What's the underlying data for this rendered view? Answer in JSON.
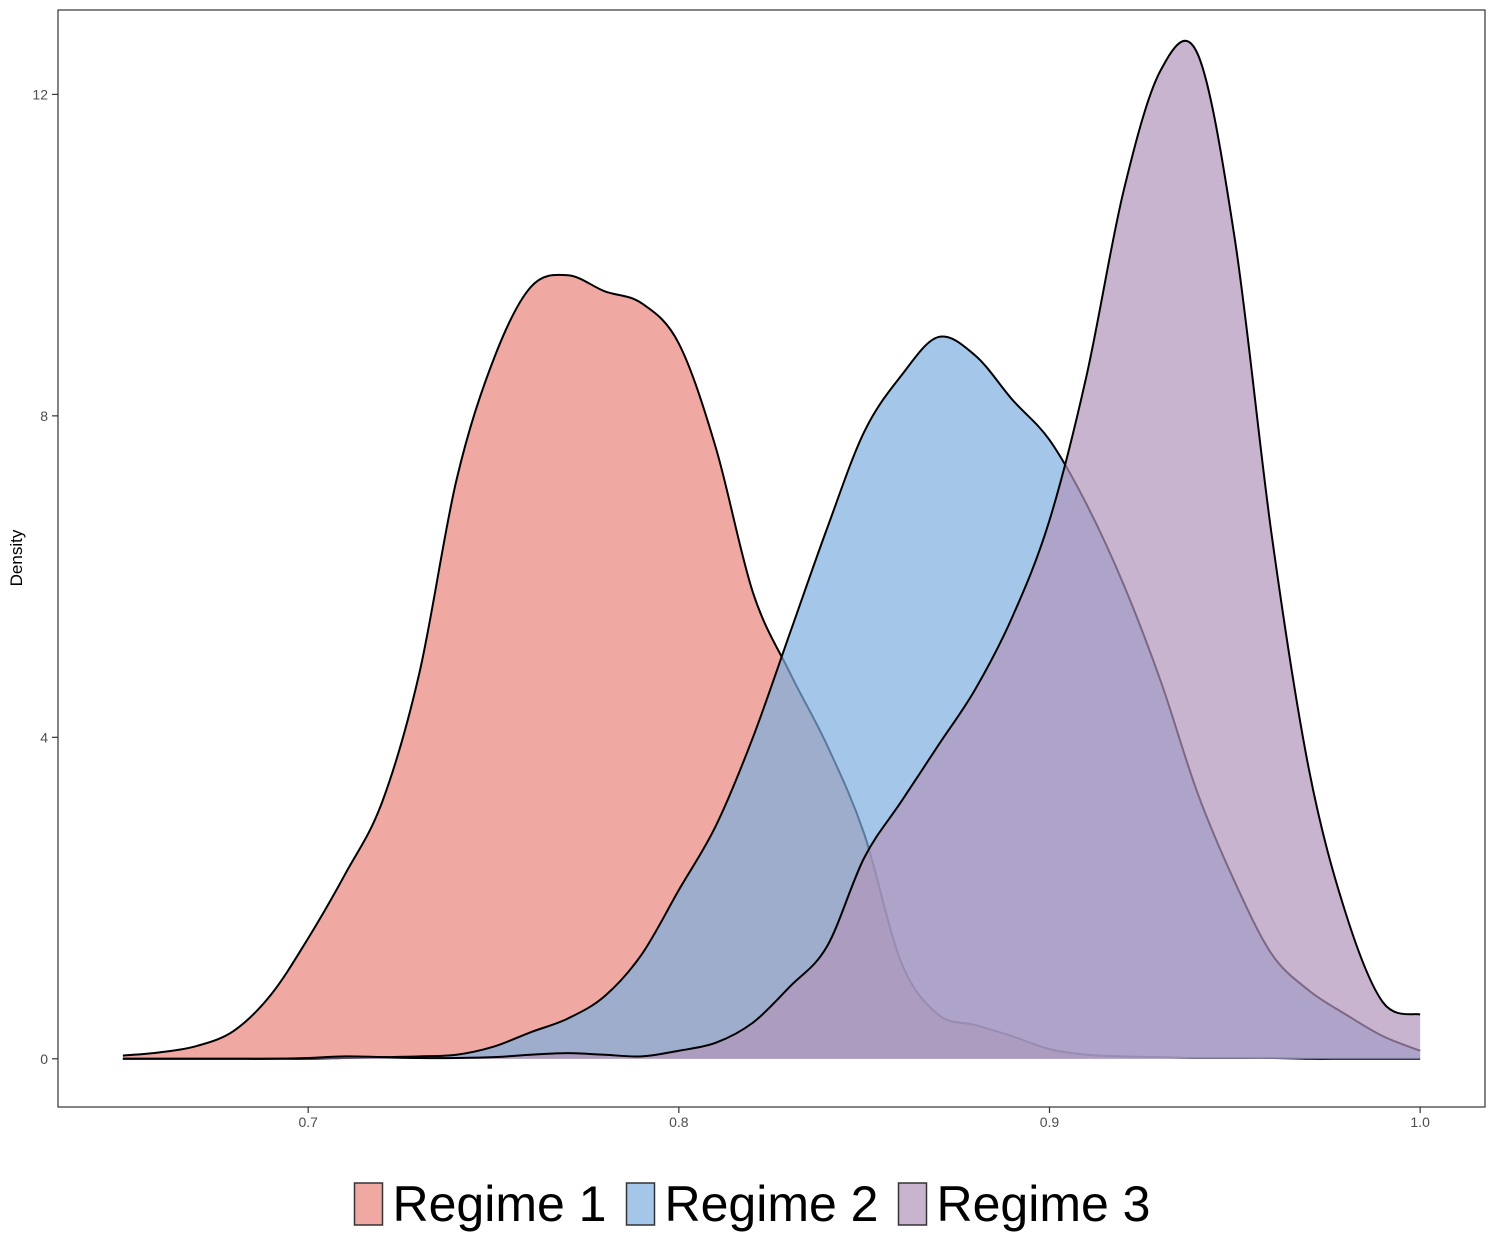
{
  "chart_data": {
    "type": "area",
    "subtype": "density",
    "title": "",
    "xlabel": "",
    "ylabel": "Density",
    "xlim": [
      0.6325,
      1.0175
    ],
    "ylim": [
      -0.6,
      13.05
    ],
    "x_ticks": [
      {
        "value": 0.7,
        "label": "0.7"
      },
      {
        "value": 0.8,
        "label": "0.8"
      },
      {
        "value": 0.9,
        "label": "0.9"
      },
      {
        "value": 1.0,
        "label": "1.0"
      }
    ],
    "y_ticks": [
      {
        "value": 0,
        "label": "0"
      },
      {
        "value": 4,
        "label": "4"
      },
      {
        "value": 8,
        "label": "8"
      },
      {
        "value": 12,
        "label": "12"
      }
    ],
    "grid": false,
    "legend_position": "bottom",
    "series": [
      {
        "name": "Regime 1",
        "label": "Regime 1",
        "color": "#E8837A",
        "opacity": 0.7,
        "x": [
          0.65,
          0.66,
          0.67,
          0.68,
          0.69,
          0.7,
          0.71,
          0.72,
          0.73,
          0.74,
          0.75,
          0.76,
          0.77,
          0.78,
          0.79,
          0.8,
          0.81,
          0.82,
          0.83,
          0.84,
          0.85,
          0.86,
          0.87,
          0.88,
          0.89,
          0.9,
          0.91,
          0.92,
          0.93,
          0.94,
          0.95,
          0.96,
          0.97,
          0.98,
          0.99,
          1.0
        ],
        "y": [
          0.04,
          0.08,
          0.16,
          0.35,
          0.8,
          1.5,
          2.3,
          3.2,
          4.8,
          7.2,
          8.7,
          9.6,
          9.75,
          9.55,
          9.4,
          8.9,
          7.6,
          5.8,
          4.8,
          3.9,
          2.8,
          1.2,
          0.55,
          0.42,
          0.28,
          0.12,
          0.05,
          0.03,
          0.02,
          0.01,
          0.01,
          0.01,
          0.0,
          0.0,
          0.0,
          0.0
        ]
      },
      {
        "name": "Regime 2",
        "label": "Regime 2",
        "color": "#7DAFE0",
        "opacity": 0.7,
        "x": [
          0.65,
          0.66,
          0.67,
          0.68,
          0.69,
          0.7,
          0.71,
          0.72,
          0.73,
          0.74,
          0.75,
          0.76,
          0.77,
          0.78,
          0.79,
          0.8,
          0.81,
          0.82,
          0.83,
          0.84,
          0.85,
          0.86,
          0.87,
          0.88,
          0.89,
          0.9,
          0.91,
          0.92,
          0.93,
          0.94,
          0.95,
          0.96,
          0.97,
          0.98,
          0.99,
          1.0
        ],
        "y": [
          0.0,
          0.0,
          0.0,
          0.0,
          0.0,
          0.0,
          0.01,
          0.02,
          0.03,
          0.05,
          0.15,
          0.33,
          0.5,
          0.78,
          1.3,
          2.1,
          2.9,
          4.0,
          5.3,
          6.6,
          7.8,
          8.5,
          8.98,
          8.75,
          8.2,
          7.7,
          6.9,
          5.9,
          4.7,
          3.3,
          2.2,
          1.3,
          0.85,
          0.55,
          0.28,
          0.1
        ]
      },
      {
        "name": "Regime 3",
        "label": "Regime 3",
        "color": "#B294BB",
        "opacity": 0.7,
        "x": [
          0.65,
          0.66,
          0.67,
          0.68,
          0.69,
          0.7,
          0.71,
          0.72,
          0.73,
          0.74,
          0.75,
          0.76,
          0.77,
          0.78,
          0.79,
          0.8,
          0.81,
          0.82,
          0.83,
          0.84,
          0.85,
          0.86,
          0.87,
          0.88,
          0.89,
          0.9,
          0.91,
          0.92,
          0.93,
          0.94,
          0.95,
          0.96,
          0.97,
          0.98,
          0.99,
          1.0
        ],
        "y": [
          0.0,
          0.0,
          0.0,
          0.0,
          0.0,
          0.01,
          0.03,
          0.02,
          0.01,
          0.01,
          0.02,
          0.05,
          0.07,
          0.05,
          0.03,
          0.1,
          0.2,
          0.45,
          0.9,
          1.4,
          2.5,
          3.2,
          3.9,
          4.6,
          5.5,
          6.7,
          8.5,
          10.8,
          12.3,
          12.5,
          10.2,
          6.5,
          3.6,
          1.8,
          0.7,
          0.55
        ]
      }
    ]
  }
}
